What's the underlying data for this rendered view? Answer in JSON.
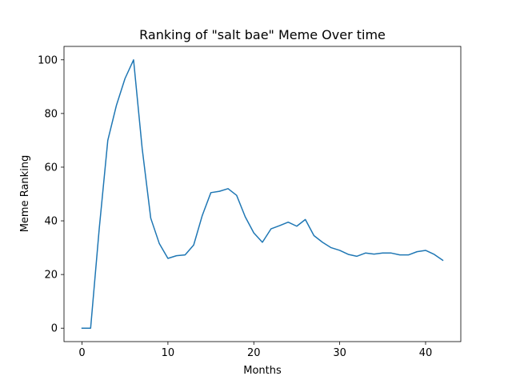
{
  "chart_data": {
    "type": "line",
    "title": "Ranking of \"salt bae\" Meme Over time",
    "xlabel": "Months",
    "ylabel": "Meme Ranking",
    "xlim": [
      -2.1,
      44.1
    ],
    "ylim": [
      -5,
      105
    ],
    "xticks": [
      0,
      10,
      20,
      30,
      40
    ],
    "yticks": [
      0,
      20,
      40,
      60,
      80,
      100
    ],
    "grid": false,
    "colors": {
      "line": "#1f77b4"
    },
    "series": [
      {
        "x": [
          0,
          1,
          2,
          3,
          4,
          5,
          6,
          7,
          8,
          9,
          10,
          11,
          12,
          13,
          14,
          15,
          16,
          17,
          18,
          19,
          20,
          21,
          22,
          23,
          24,
          25,
          26,
          27,
          28,
          29,
          30,
          31,
          32,
          33,
          34,
          35,
          36,
          37,
          38,
          39,
          40,
          41,
          42
        ],
        "values": [
          0,
          0,
          37,
          70,
          83,
          93,
          100,
          67,
          41,
          31.5,
          26,
          27,
          27.3,
          31,
          42,
          50.5,
          51,
          52,
          49.5,
          41.5,
          35.5,
          32,
          37,
          38.2,
          39.5,
          38,
          40.5,
          34.5,
          32,
          30,
          29,
          27.5,
          26.8,
          28,
          27.6,
          28,
          28,
          27.3,
          27.3,
          28.5,
          29,
          27.5,
          25.3
        ]
      }
    ]
  }
}
